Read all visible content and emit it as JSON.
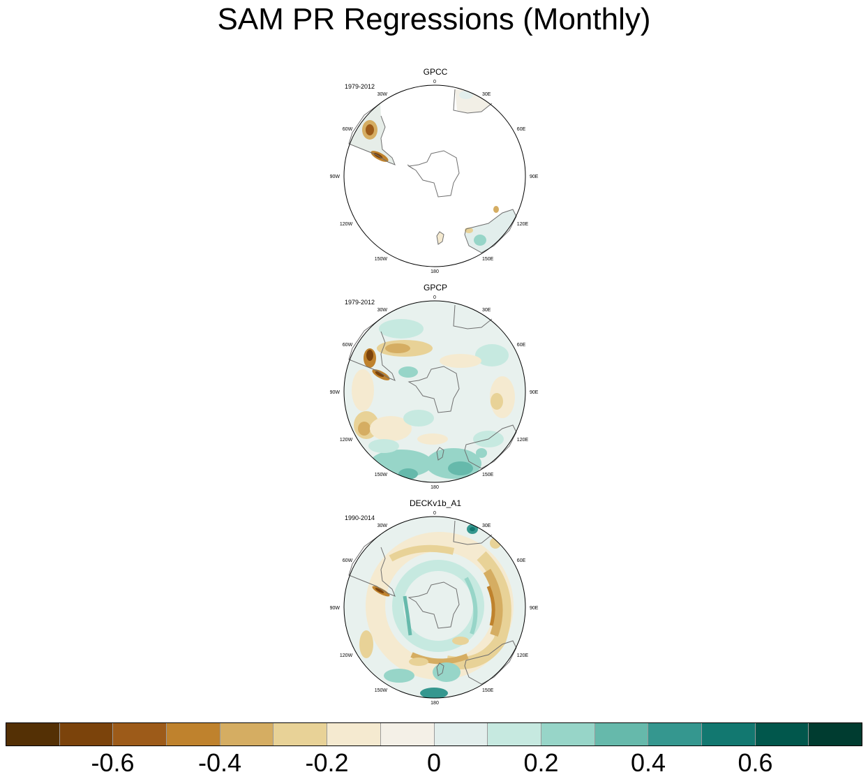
{
  "figure": {
    "title": "SAM PR Regressions (Monthly)"
  },
  "longitude_labels": [
    "0",
    "30E",
    "60E",
    "90E",
    "120E",
    "150E",
    "180",
    "150W",
    "120W",
    "90W",
    "60W",
    "30W"
  ],
  "panels": [
    {
      "name": "GPCC",
      "period": "1979-2012"
    },
    {
      "name": "GPCP",
      "period": "1979-2012"
    },
    {
      "name": "DECKv1b_A1",
      "period": "1990-2014"
    }
  ],
  "colorbar": {
    "colors": [
      "#543005",
      "#7b430b",
      "#9d5b19",
      "#bf822d",
      "#d5ad62",
      "#e8d297",
      "#f5ead0",
      "#f4f0e7",
      "#e2eeec",
      "#c6e9e0",
      "#97d5c8",
      "#66b9ab",
      "#35978f",
      "#127870",
      "#01574c",
      "#003c30"
    ],
    "tick_labels": [
      "-0.6",
      "-0.4",
      "-0.2",
      "0",
      "0.2",
      "0.4",
      "0.6"
    ],
    "tick_values": [
      -0.6,
      -0.4,
      -0.2,
      0,
      0.2,
      0.4,
      0.6
    ],
    "range": [
      -0.8,
      0.8
    ]
  },
  "chart_data": {
    "type": "heatmap",
    "title": "SAM PR Regressions (Monthly)",
    "projection": "south polar stereographic",
    "colorbar_range": [
      -0.8,
      0.8
    ],
    "colorbar_ticks": [
      -0.6,
      -0.4,
      -0.2,
      0,
      0.2,
      0.4,
      0.6
    ],
    "panels": [
      {
        "name": "GPCC",
        "period": "1979-2012",
        "coverage": "land only",
        "features": [
          {
            "region": "southern Chile (40-50S)",
            "sign": "negative",
            "approx_value": -0.6
          },
          {
            "region": "northern Patagonia",
            "sign": "positive",
            "approx_value": 0.1
          },
          {
            "region": "southeast Australia",
            "sign": "positive",
            "approx_value": 0.2
          },
          {
            "region": "southwest Australia",
            "sign": "negative",
            "approx_value": -0.2
          }
        ]
      },
      {
        "name": "GPCP",
        "period": "1979-2012",
        "coverage": "global",
        "features": [
          {
            "region": "southern Chile (40-50S)",
            "sign": "negative",
            "approx_value": -0.6
          },
          {
            "region": "South Atlantic 40S",
            "sign": "negative",
            "approx_value": -0.3
          },
          {
            "region": "Tasman Sea / south of New Zealand",
            "sign": "positive",
            "approx_value": 0.3
          },
          {
            "region": "Amundsen-Bellingshausen Sea",
            "sign": "positive",
            "approx_value": 0.2
          },
          {
            "region": "South Pacific 120W 40S",
            "sign": "negative",
            "approx_value": -0.3
          }
        ]
      },
      {
        "name": "DECKv1b_A1",
        "period": "1990-2014",
        "coverage": "global",
        "features": [
          {
            "region": "circumpolar belt 45-60S",
            "sign": "negative",
            "approx_value": -0.4
          },
          {
            "region": "Antarctic coastal ring 60-65S",
            "sign": "positive",
            "approx_value": 0.3
          },
          {
            "region": "Indian Ocean 60E-100E",
            "sign": "negative",
            "approx_value": -0.5
          },
          {
            "region": "southern Chile",
            "sign": "negative",
            "approx_value": -0.6
          },
          {
            "region": "southern Africa 30E",
            "sign": "positive",
            "approx_value": 0.5
          },
          {
            "region": "south of New Zealand",
            "sign": "positive",
            "approx_value": 0.5
          }
        ]
      }
    ]
  }
}
